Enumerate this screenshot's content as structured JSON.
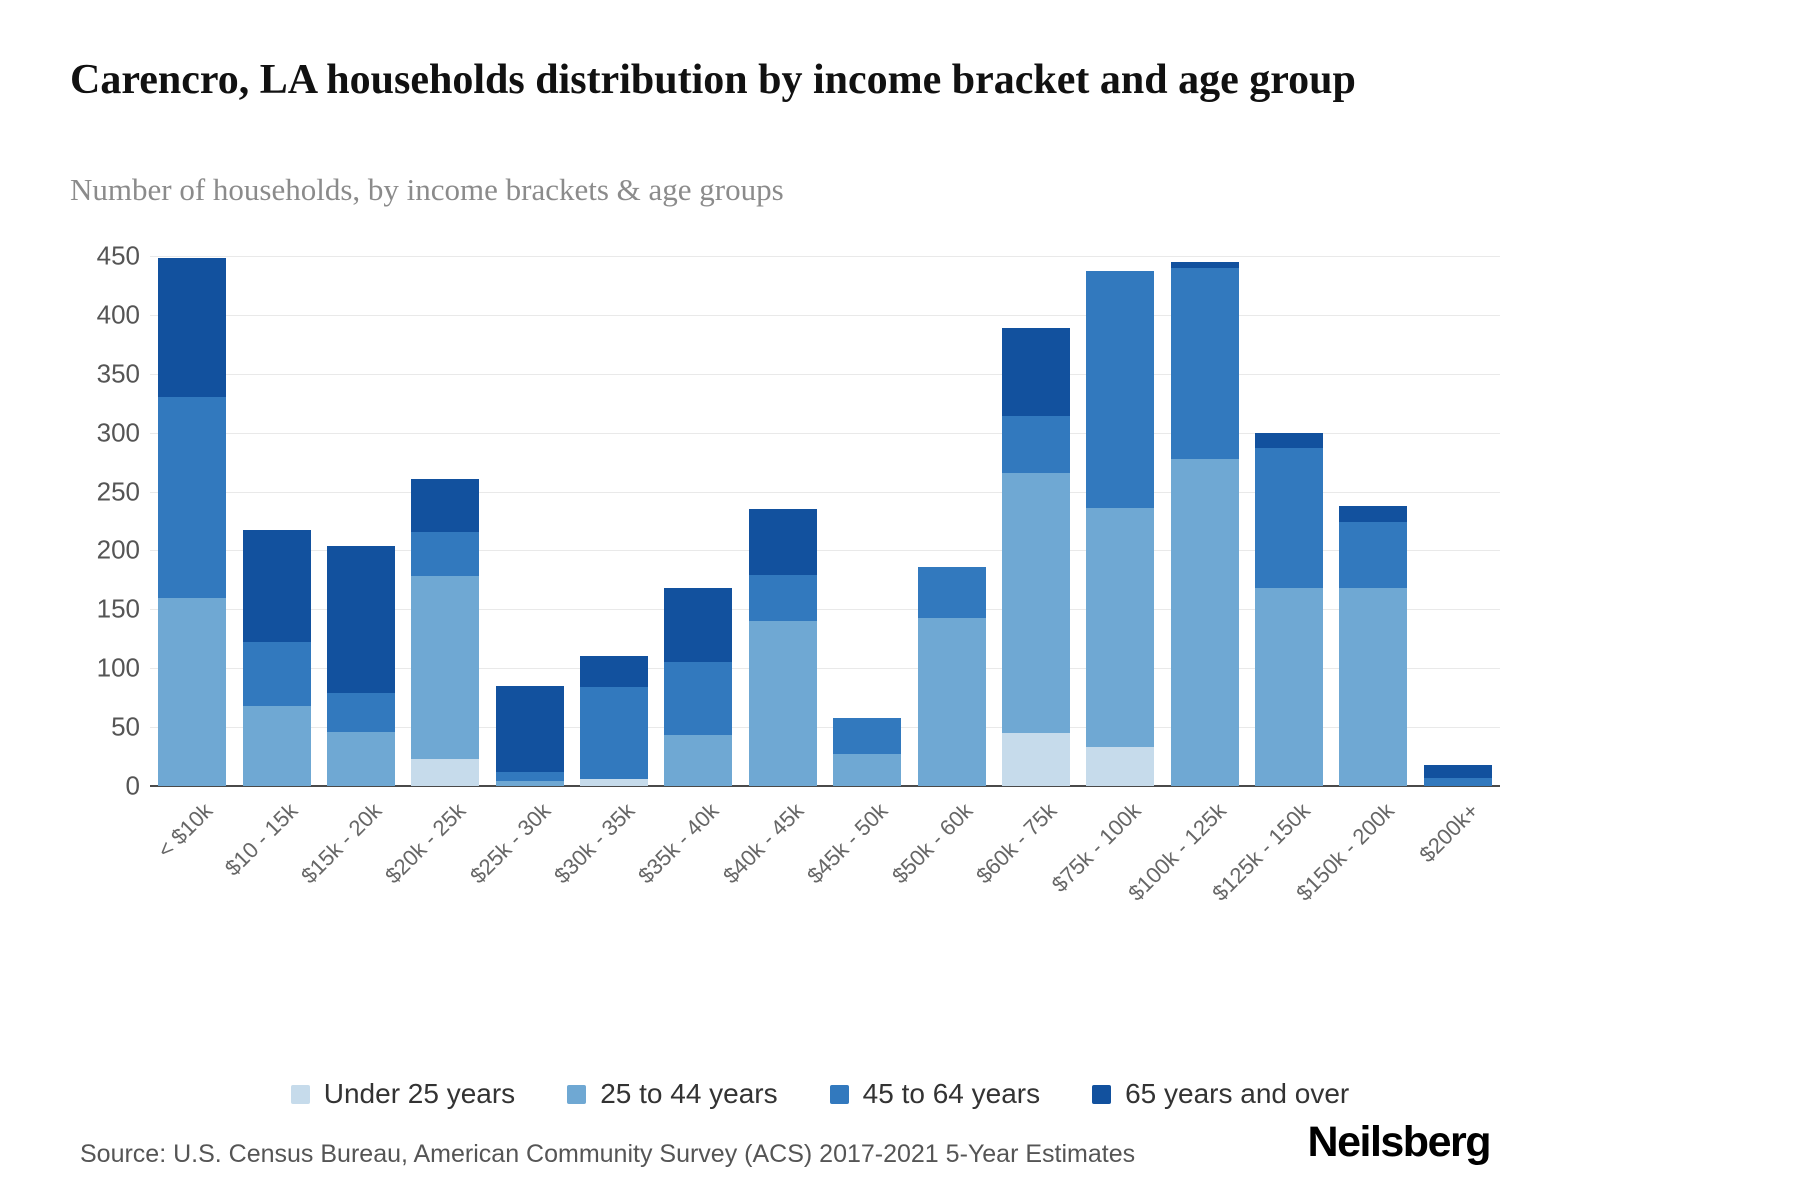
{
  "header": {
    "title": "Carencro, LA households distribution by income bracket and age group",
    "subtitle": "Number of households, by income brackets & age groups"
  },
  "footer": {
    "source": "Source: U.S. Census Bureau, American Community Survey (ACS) 2017-2021 5-Year Estimates",
    "brand": "Neilsberg"
  },
  "colors": {
    "grid": "#e9e9e9",
    "axis": "#4a4a4a",
    "under_25": "#c6dbeb",
    "age_25_44": "#6fa8d3",
    "age_45_64": "#3279be",
    "age_65_over": "#12519e"
  },
  "chart_data": {
    "type": "bar",
    "stacked": true,
    "title": "Carencro, LA households distribution by income bracket and age group",
    "xlabel": "",
    "ylabel": "Number of households",
    "ylim": [
      0,
      450
    ],
    "yticks": [
      0,
      50,
      100,
      150,
      200,
      250,
      300,
      350,
      400,
      450
    ],
    "grid": true,
    "legend_position": "bottom",
    "categories": [
      "< $10k",
      "$10 - 15k",
      "$15k - 20k",
      "$20k - 25k",
      "$25k - 30k",
      "$30k - 35k",
      "$35k - 40k",
      "$40k - 45k",
      "$45k - 50k",
      "$50k - 60k",
      "$60k - 75k",
      "$75k - 100k",
      "$100k - 125k",
      "$125k - 150k",
      "$150k - 200k",
      "$200k+"
    ],
    "series": [
      {
        "name": "Under 25 years",
        "color": "#c6dbeb",
        "values": [
          0,
          0,
          0,
          23,
          0,
          6,
          0,
          0,
          0,
          0,
          45,
          33,
          0,
          0,
          0,
          0
        ]
      },
      {
        "name": "25 to 44 years",
        "color": "#6fa8d3",
        "values": [
          160,
          68,
          46,
          155,
          4,
          0,
          43,
          140,
          27,
          143,
          221,
          203,
          278,
          168,
          168,
          0
        ]
      },
      {
        "name": "45 to 64 years",
        "color": "#3279be",
        "values": [
          170,
          54,
          33,
          38,
          8,
          78,
          62,
          39,
          31,
          43,
          48,
          201,
          162,
          119,
          56,
          7
        ]
      },
      {
        "name": "65 years and over",
        "color": "#12519e",
        "values": [
          118,
          95,
          125,
          45,
          73,
          26,
          63,
          56,
          0,
          0,
          75,
          0,
          5,
          13,
          14,
          11
        ]
      }
    ]
  }
}
